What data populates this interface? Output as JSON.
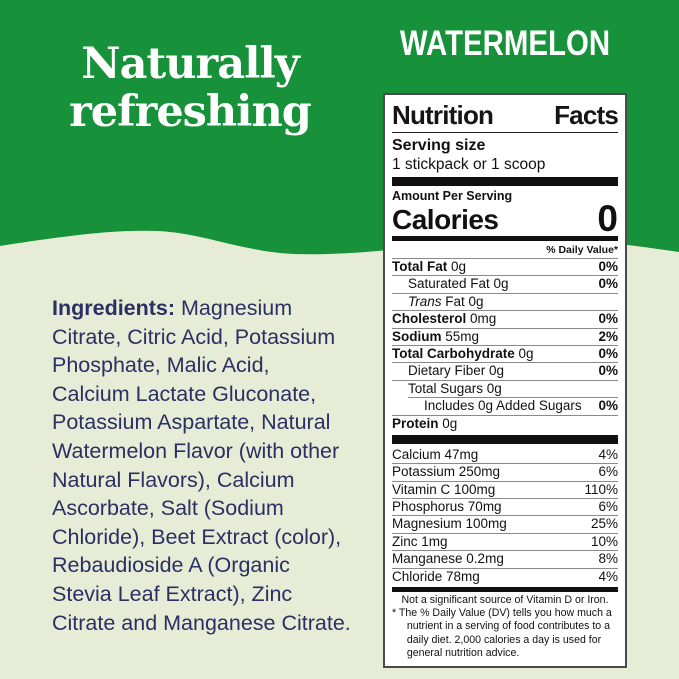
{
  "colors": {
    "green": "#17913A",
    "cream": "#E6ECD5",
    "navy": "#2B2F63",
    "label_text": "#111111"
  },
  "hero": {
    "tagline": "Naturally\nrefreshing",
    "flavor": "WATERMELON"
  },
  "ingredients": {
    "label": "Ingredients:",
    "text": " Magnesium\nCitrate, Citric Acid, Potassium\nPhosphate, Malic Acid,\nCalcium Lactate Gluconate,\nPotassium Aspartate, Natural\nWatermelon Flavor (with other\nNatural Flavors), Calcium\nAscorbate, Salt (Sodium\nChloride), Beet Extract (color),\nRebaudioside A (Organic\nStevia Leaf Extract), Zinc\nCitrate and Manganese Citrate."
  },
  "nutrition": {
    "title_left": "Nutrition",
    "title_right": "Facts",
    "serving_size_label": "Serving size",
    "serving_size_value": "1 stickpack or 1 scoop",
    "amount_per_serving": "Amount Per Serving",
    "calories_label": "Calories",
    "calories_value": "0",
    "daily_value_header": "% Daily Value*",
    "rows": [
      {
        "b": "Total Fat",
        "t": " 0g",
        "ind": 0,
        "dv": "0%"
      },
      {
        "t": "Saturated Fat 0g",
        "ind": 1,
        "dv": "0%"
      },
      {
        "it": "Trans",
        "t": " Fat 0g",
        "ind": 1,
        "dv": ""
      },
      {
        "b": "Cholesterol",
        "t": " 0mg",
        "ind": 0,
        "dv": "0%"
      },
      {
        "b": "Sodium",
        "t": " 55mg",
        "ind": 0,
        "dv": "2%"
      },
      {
        "b": "Total Carbohydrate",
        "t": " 0g",
        "ind": 0,
        "dv": "0%"
      },
      {
        "t": "Dietary Fiber 0g",
        "ind": 1,
        "dv": "0%"
      },
      {
        "t": "Total Sugars 0g",
        "ind": 1,
        "dv": ""
      },
      {
        "t": "Includes 0g Added Sugars",
        "ind": 2,
        "dv": "0%"
      },
      {
        "b": "Protein",
        "t": " 0g",
        "ind": 0,
        "dv": ""
      }
    ],
    "minerals": [
      {
        "t": "Calcium 47mg",
        "dv": "4%"
      },
      {
        "t": "Potassium 250mg",
        "dv": "6%"
      },
      {
        "t": "Vitamin C 100mg",
        "dv": "110%"
      },
      {
        "t": "Phosphorus 70mg",
        "dv": "6%"
      },
      {
        "t": "Magnesium 100mg",
        "dv": "25%"
      },
      {
        "t": "Zinc 1mg",
        "dv": "10%"
      },
      {
        "t": "Manganese 0.2mg",
        "dv": "8%"
      },
      {
        "t": "Chloride 78mg",
        "dv": "4%"
      }
    ],
    "not_significant": "Not a significant source of Vitamin D or Iron.",
    "footnote": "* The % Daily Value (DV) tells you how much a\n   nutrient in a serving of food contributes to a\n   daily diet. 2,000 calories a day is used for\n   general nutrition advice."
  }
}
